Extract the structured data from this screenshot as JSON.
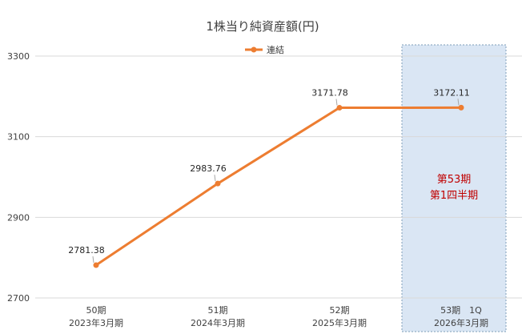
{
  "chart_data": {
    "type": "line",
    "title": "1株当り純資産額(円)",
    "categories": [
      {
        "line1": "50期",
        "line2": "2023年3月期"
      },
      {
        "line1": "51期",
        "line2": "2024年3月期"
      },
      {
        "line1": "52期",
        "line2": "2025年3月期"
      },
      {
        "line1": "53期　1Q",
        "line2": "2026年3月期"
      }
    ],
    "series": [
      {
        "name": "連結",
        "values": [
          2781.38,
          2983.76,
          3171.78,
          3172.11
        ],
        "labels": [
          "2781.38",
          "2983.76",
          "3171.78",
          "3172.11"
        ],
        "color": "#ed7d31"
      }
    ],
    "ylim": [
      2700,
      3300
    ],
    "yticks": [
      2700,
      2900,
      3100,
      3300
    ],
    "grid": true,
    "legend_position": "top-center",
    "highlight": {
      "category_index": 3,
      "fill": "#dae6f4",
      "text_line1": "第53期",
      "text_line2": "第1四半期",
      "text_color": "#c00000"
    }
  }
}
